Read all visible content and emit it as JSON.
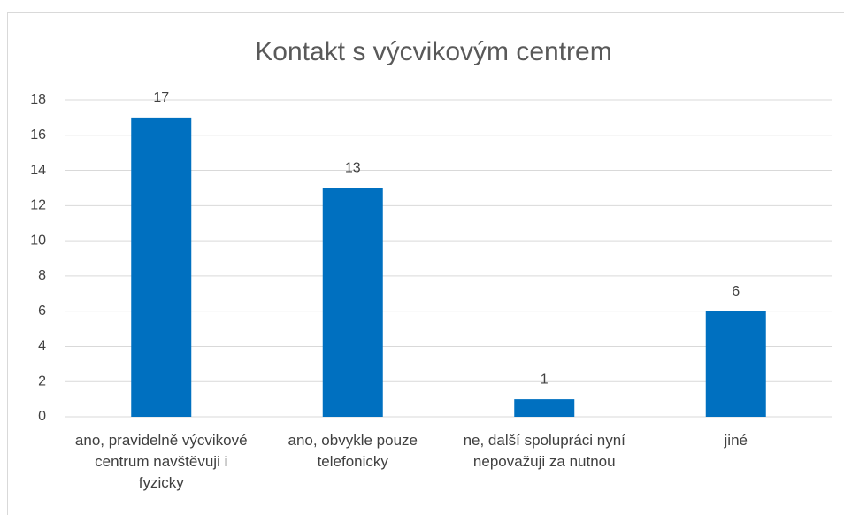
{
  "chart_data": {
    "type": "bar",
    "title": "Kontakt s výcvikovým centrem",
    "categories": [
      "ano, pravidelně výcvikové centrum navštěvuji i fyzicky",
      "ano, obvykle pouze telefonicky",
      "ne, další spolupráci nyní nepovažuji za nutnou",
      "jiné"
    ],
    "values": [
      17,
      13,
      1,
      6
    ],
    "color": "#0070c0",
    "ylim": [
      0,
      18
    ],
    "yticks": [
      0,
      2,
      4,
      6,
      8,
      10,
      12,
      14,
      16,
      18
    ],
    "grid": true
  }
}
